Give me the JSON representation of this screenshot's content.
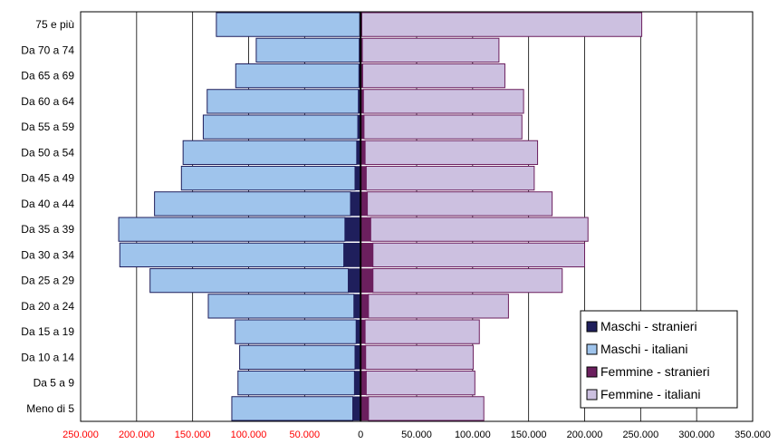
{
  "chart_data": {
    "type": "bar",
    "orientation": "horizontal",
    "layout": "population-pyramid",
    "categories": [
      "75 e più",
      "Da 70 a 74",
      "Da 65 a 69",
      "Da 60 a 64",
      "Da 55 a 59",
      "Da 50 a 54",
      "Da 45 a 49",
      "Da 40 a 44",
      "Da 35 a 39",
      "Da 30 a 34",
      "Da 25 a 29",
      "Da 20 a 24",
      "Da 15 a 19",
      "Da 10 a 14",
      "Da 5 a 9",
      "Meno di 5"
    ],
    "series": [
      {
        "name": "Maschi - stranieri",
        "side": "left",
        "color": "#1F1F5C",
        "values": [
          800,
          1200,
          1500,
          2000,
          2500,
          3500,
          5000,
          9000,
          14000,
          15000,
          11000,
          6000,
          4000,
          5000,
          5500,
          7000
        ]
      },
      {
        "name": "Maschi - italiani",
        "side": "left",
        "color": "#9FC4EC",
        "values": [
          128000,
          92000,
          110000,
          135000,
          138000,
          155000,
          155000,
          175000,
          202000,
          200000,
          177000,
          130000,
          108000,
          103000,
          104000,
          108000
        ]
      },
      {
        "name": "Femmine - stranieri",
        "side": "right",
        "color": "#6B1F5E",
        "values": [
          1000,
          1500,
          1800,
          2500,
          3000,
          4000,
          5000,
          6000,
          9000,
          11000,
          11000,
          7000,
          4000,
          4500,
          5000,
          7000
        ]
      },
      {
        "name": "Femmine - italiani",
        "side": "right",
        "color": "#CCC0E0",
        "values": [
          250000,
          122000,
          127000,
          143000,
          141000,
          154000,
          150000,
          165000,
          194000,
          189000,
          169000,
          125000,
          102000,
          96000,
          97000,
          103000
        ]
      }
    ],
    "xticks": [
      "250.000",
      "200.000",
      "150.000",
      "100.000",
      "50.000",
      "0",
      "50.000",
      "100.000",
      "150.000",
      "200.000",
      "250.000",
      "300.000",
      "350.000"
    ],
    "xlim": [
      -250000,
      350000
    ],
    "tick_colors": {
      "negative": "#FF0000",
      "positive": "#000000"
    },
    "grid": "vertical",
    "legend_position": "bottom-right"
  }
}
